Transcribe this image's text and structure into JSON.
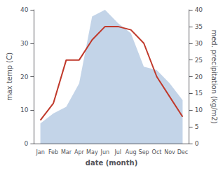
{
  "chart_data": {
    "type": "line",
    "categories": [
      "Jan",
      "Feb",
      "Mar",
      "Apr",
      "May",
      "Jun",
      "Jul",
      "Aug",
      "Sep",
      "Oct",
      "Nov",
      "Dec"
    ],
    "xlabel": "date (month)",
    "ylabel": "max temp (C)",
    "y2label": "med. precipitation (kg/m2)",
    "ylim": [
      0,
      40
    ],
    "yticks": [
      0,
      10,
      20,
      30,
      40
    ],
    "y2lim": [
      0,
      40
    ],
    "y2ticks": [
      0,
      5,
      10,
      15,
      20,
      25,
      30,
      35,
      40
    ],
    "grid": false,
    "series": [
      {
        "type": "area",
        "color": "#b8cce4",
        "axis": "y2",
        "values": [
          6,
          9,
          11,
          18,
          38,
          40,
          36,
          33,
          23,
          22,
          18,
          13
        ]
      },
      {
        "type": "line",
        "color": "#c0392b",
        "values": [
          7,
          12,
          25,
          25,
          31,
          35,
          35,
          34,
          30,
          20,
          14,
          8
        ]
      }
    ]
  }
}
